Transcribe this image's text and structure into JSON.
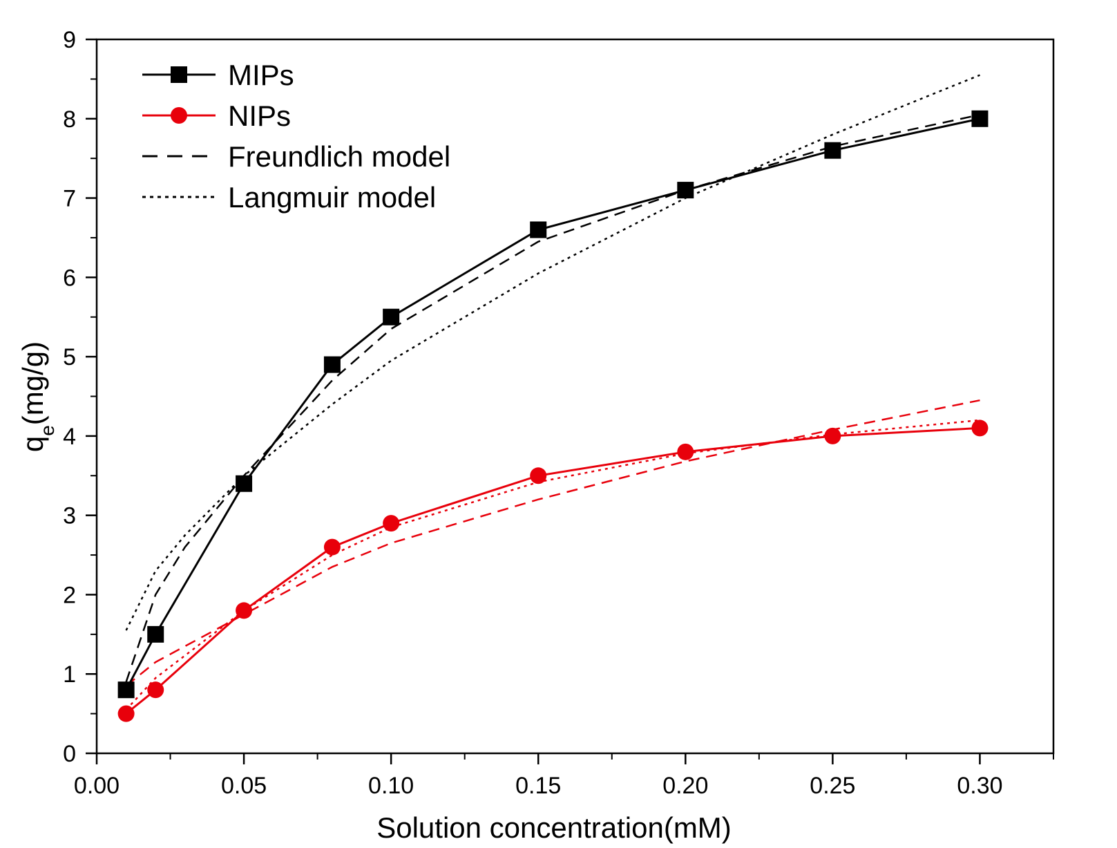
{
  "chart_data": {
    "type": "line",
    "title": "",
    "xlabel": "Solution concentration(mM)",
    "ylabel_main": "q",
    "ylabel_sub": "e",
    "ylabel_rest": "(mg/g)",
    "xlim": [
      0.0,
      0.325
    ],
    "ylim": [
      0,
      9
    ],
    "x_ticks": [
      0.0,
      0.05,
      0.1,
      0.15,
      0.2,
      0.25,
      0.3
    ],
    "x_tick_labels": [
      "0.00",
      "0.05",
      "0.10",
      "0.15",
      "0.20",
      "0.25",
      "0.30"
    ],
    "y_ticks": [
      0,
      1,
      2,
      3,
      4,
      5,
      6,
      7,
      8,
      9
    ],
    "y_tick_labels": [
      "0",
      "1",
      "2",
      "3",
      "4",
      "5",
      "6",
      "7",
      "8",
      "9"
    ],
    "legend_position": "top-left",
    "grid": false,
    "series": [
      {
        "name": "MIPs",
        "color": "#000000",
        "marker": "square",
        "style": "solid",
        "x": [
          0.01,
          0.02,
          0.05,
          0.08,
          0.1,
          0.15,
          0.2,
          0.25,
          0.3
        ],
        "y": [
          0.8,
          1.5,
          3.4,
          4.9,
          5.5,
          6.6,
          7.1,
          7.6,
          8.0
        ]
      },
      {
        "name": "NIPs",
        "color": "#e8000b",
        "marker": "circle",
        "style": "solid",
        "x": [
          0.01,
          0.02,
          0.05,
          0.08,
          0.1,
          0.15,
          0.2,
          0.25,
          0.3
        ],
        "y": [
          0.5,
          0.8,
          1.8,
          2.6,
          2.9,
          3.5,
          3.8,
          4.0,
          4.1
        ]
      },
      {
        "name": "MIPs Freundlich fit",
        "color": "#000000",
        "style": "dashed",
        "x": [
          0.01,
          0.02,
          0.03,
          0.05,
          0.08,
          0.1,
          0.15,
          0.2,
          0.25,
          0.3
        ],
        "y": [
          0.9,
          2.0,
          2.6,
          3.5,
          4.7,
          5.35,
          6.45,
          7.1,
          7.65,
          8.05
        ]
      },
      {
        "name": "MIPs Langmuir fit",
        "color": "#000000",
        "style": "dotted",
        "x": [
          0.01,
          0.02,
          0.03,
          0.05,
          0.08,
          0.1,
          0.15,
          0.2,
          0.25,
          0.3
        ],
        "y": [
          1.55,
          2.3,
          2.75,
          3.5,
          4.4,
          4.95,
          6.05,
          7.0,
          7.8,
          8.55
        ]
      },
      {
        "name": "NIPs Freundlich fit",
        "color": "#e8000b",
        "style": "dashed",
        "x": [
          0.01,
          0.02,
          0.05,
          0.08,
          0.1,
          0.15,
          0.2,
          0.25,
          0.3
        ],
        "y": [
          0.85,
          1.15,
          1.75,
          2.35,
          2.65,
          3.2,
          3.68,
          4.08,
          4.45
        ]
      },
      {
        "name": "NIPs Langmuir fit",
        "color": "#e8000b",
        "style": "dotted",
        "x": [
          0.01,
          0.02,
          0.05,
          0.08,
          0.1,
          0.15,
          0.2,
          0.25,
          0.3
        ],
        "y": [
          0.55,
          0.95,
          1.8,
          2.5,
          2.85,
          3.42,
          3.78,
          4.02,
          4.2
        ]
      }
    ],
    "legend": [
      {
        "label": "MIPs",
        "color": "#000000",
        "style": "solid",
        "marker": "square"
      },
      {
        "label": "NIPs",
        "color": "#e8000b",
        "style": "solid",
        "marker": "circle"
      },
      {
        "label": "Freundlich model",
        "color": "#000000",
        "style": "dashed",
        "marker": "none"
      },
      {
        "label": "Langmuir model",
        "color": "#000000",
        "style": "dotted",
        "marker": "none"
      }
    ]
  }
}
